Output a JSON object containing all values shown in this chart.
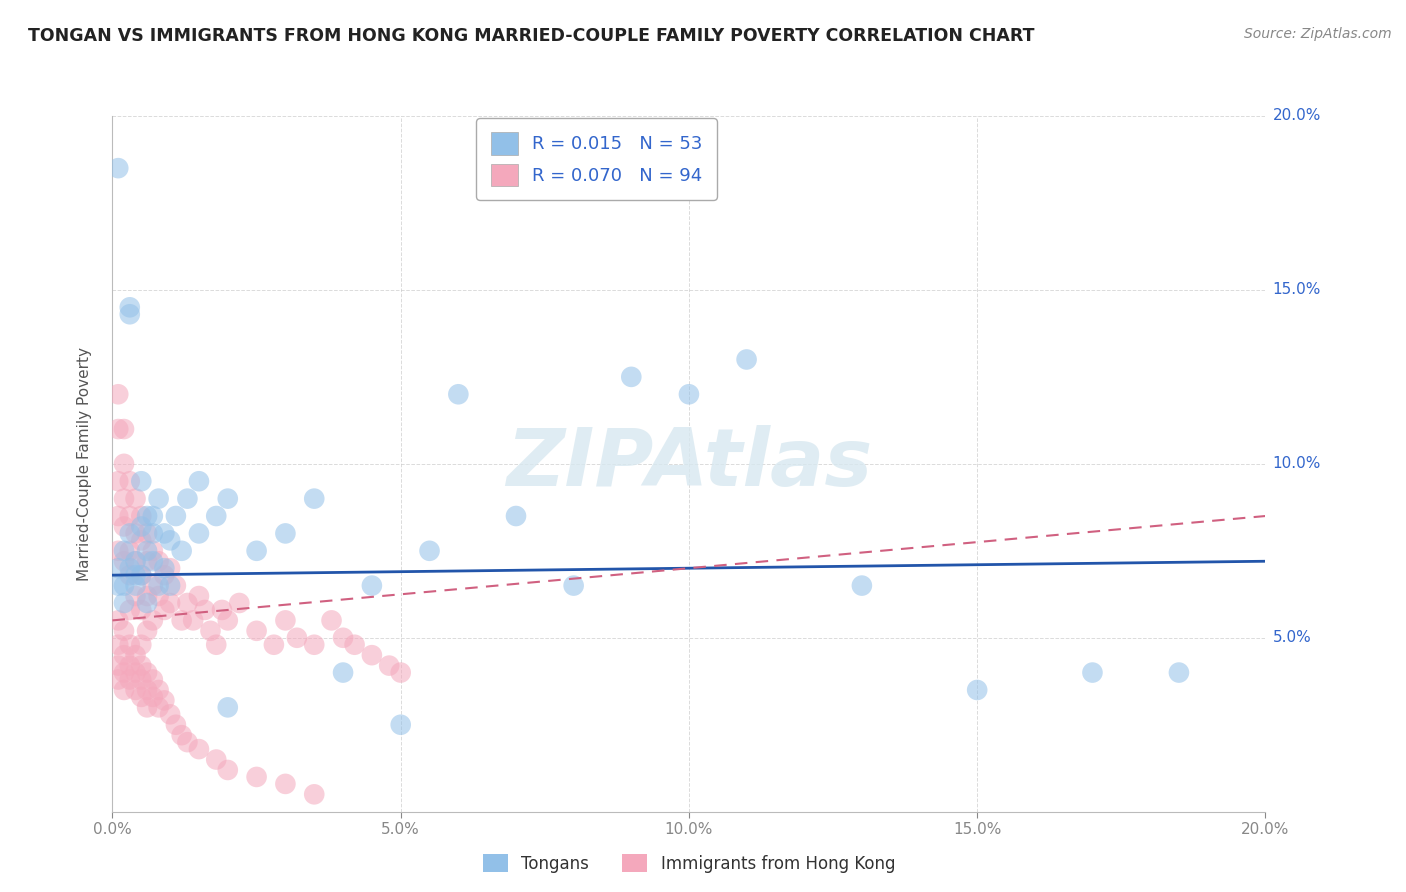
{
  "title": "TONGAN VS IMMIGRANTS FROM HONG KONG MARRIED-COUPLE FAMILY POVERTY CORRELATION CHART",
  "source": "Source: ZipAtlas.com",
  "ylabel": "Married-Couple Family Poverty",
  "xlim": [
    0,
    0.2
  ],
  "ylim": [
    0,
    0.2
  ],
  "xticks": [
    0.0,
    0.05,
    0.1,
    0.15,
    0.2
  ],
  "yticks": [
    0.0,
    0.05,
    0.1,
    0.15,
    0.2
  ],
  "series1_label": "Tongans",
  "series1_color": "#92c0e8",
  "series1_edge": "#6aaad4",
  "series1_R": 0.015,
  "series1_N": 53,
  "series2_label": "Immigrants from Hong Kong",
  "series2_color": "#f4a8bc",
  "series2_edge": "#e888a8",
  "series2_R": 0.07,
  "series2_N": 94,
  "trend1_color": "#2255aa",
  "trend2_color": "#d06080",
  "legend_text_color": "#3366cc",
  "ytick_color": "#3366cc",
  "watermark": "ZIPAtlas",
  "background_color": "#ffffff",
  "grid_color": "#cccccc",
  "tongans_x": [
    0.001,
    0.001,
    0.002,
    0.002,
    0.003,
    0.003,
    0.003,
    0.004,
    0.004,
    0.005,
    0.005,
    0.006,
    0.006,
    0.007,
    0.007,
    0.008,
    0.009,
    0.01,
    0.011,
    0.013,
    0.015,
    0.018,
    0.02,
    0.025,
    0.03,
    0.035,
    0.04,
    0.045,
    0.05,
    0.055,
    0.06,
    0.07,
    0.08,
    0.09,
    0.1,
    0.11,
    0.13,
    0.15,
    0.17,
    0.185,
    0.001,
    0.002,
    0.003,
    0.004,
    0.005,
    0.006,
    0.007,
    0.008,
    0.009,
    0.01,
    0.012,
    0.015,
    0.02
  ],
  "tongans_y": [
    0.185,
    0.07,
    0.065,
    0.075,
    0.145,
    0.143,
    0.08,
    0.072,
    0.068,
    0.095,
    0.082,
    0.085,
    0.075,
    0.085,
    0.08,
    0.09,
    0.08,
    0.078,
    0.085,
    0.09,
    0.095,
    0.085,
    0.09,
    0.075,
    0.08,
    0.09,
    0.04,
    0.065,
    0.025,
    0.075,
    0.12,
    0.085,
    0.065,
    0.125,
    0.12,
    0.13,
    0.065,
    0.035,
    0.04,
    0.04,
    0.065,
    0.06,
    0.07,
    0.065,
    0.068,
    0.06,
    0.072,
    0.065,
    0.07,
    0.065,
    0.075,
    0.08,
    0.03
  ],
  "hk_x": [
    0.001,
    0.001,
    0.001,
    0.001,
    0.001,
    0.002,
    0.002,
    0.002,
    0.002,
    0.002,
    0.003,
    0.003,
    0.003,
    0.003,
    0.003,
    0.004,
    0.004,
    0.004,
    0.004,
    0.005,
    0.005,
    0.005,
    0.005,
    0.005,
    0.006,
    0.006,
    0.006,
    0.006,
    0.007,
    0.007,
    0.007,
    0.008,
    0.008,
    0.009,
    0.009,
    0.01,
    0.01,
    0.011,
    0.012,
    0.013,
    0.014,
    0.015,
    0.016,
    0.017,
    0.018,
    0.019,
    0.02,
    0.022,
    0.025,
    0.028,
    0.03,
    0.032,
    0.035,
    0.038,
    0.04,
    0.042,
    0.045,
    0.048,
    0.05,
    0.001,
    0.001,
    0.001,
    0.001,
    0.002,
    0.002,
    0.002,
    0.002,
    0.003,
    0.003,
    0.003,
    0.004,
    0.004,
    0.004,
    0.005,
    0.005,
    0.005,
    0.006,
    0.006,
    0.006,
    0.007,
    0.007,
    0.008,
    0.008,
    0.009,
    0.01,
    0.011,
    0.012,
    0.013,
    0.015,
    0.018,
    0.02,
    0.025,
    0.03,
    0.035
  ],
  "hk_y": [
    0.12,
    0.11,
    0.095,
    0.085,
    0.075,
    0.11,
    0.1,
    0.09,
    0.082,
    0.072,
    0.095,
    0.085,
    0.075,
    0.068,
    0.058,
    0.09,
    0.08,
    0.072,
    0.062,
    0.085,
    0.078,
    0.068,
    0.058,
    0.048,
    0.08,
    0.072,
    0.062,
    0.052,
    0.075,
    0.065,
    0.055,
    0.072,
    0.062,
    0.068,
    0.058,
    0.07,
    0.06,
    0.065,
    0.055,
    0.06,
    0.055,
    0.062,
    0.058,
    0.052,
    0.048,
    0.058,
    0.055,
    0.06,
    0.052,
    0.048,
    0.055,
    0.05,
    0.048,
    0.055,
    0.05,
    0.048,
    0.045,
    0.042,
    0.04,
    0.055,
    0.048,
    0.042,
    0.038,
    0.052,
    0.045,
    0.04,
    0.035,
    0.048,
    0.042,
    0.038,
    0.045,
    0.04,
    0.035,
    0.042,
    0.038,
    0.033,
    0.04,
    0.035,
    0.03,
    0.038,
    0.033,
    0.035,
    0.03,
    0.032,
    0.028,
    0.025,
    0.022,
    0.02,
    0.018,
    0.015,
    0.012,
    0.01,
    0.008,
    0.005
  ],
  "trend1_x": [
    0.0,
    0.2
  ],
  "trend1_y": [
    0.068,
    0.072
  ],
  "trend2_x": [
    0.0,
    0.2
  ],
  "trend2_y": [
    0.055,
    0.085
  ]
}
